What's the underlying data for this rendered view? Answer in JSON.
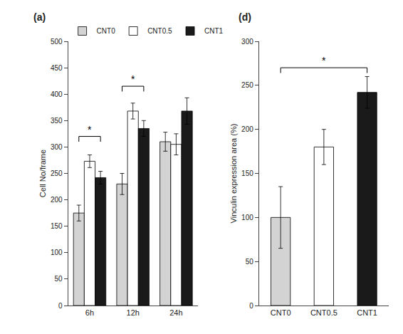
{
  "chart_data": [
    {
      "type": "bar",
      "title": "(a)",
      "categories": [
        "6h",
        "12h",
        "24h"
      ],
      "series": [
        {
          "name": "CNT0",
          "color": "#d3d3d3",
          "values": [
            175,
            230,
            310
          ],
          "errors": [
            15,
            20,
            18
          ]
        },
        {
          "name": "CNT0.5",
          "color": "white",
          "values": [
            273,
            368,
            305
          ],
          "errors": [
            12,
            15,
            20
          ]
        },
        {
          "name": "CNT1",
          "color": "#1a1a1a",
          "values": [
            242,
            335,
            368
          ],
          "errors": [
            12,
            15,
            25
          ]
        }
      ],
      "ylabel": "Cell No/frame",
      "ylim": [
        0,
        500
      ],
      "yticks": [
        0,
        50,
        100,
        150,
        200,
        250,
        300,
        350,
        400,
        450,
        500
      ],
      "legend": "upper left",
      "grid": false,
      "annotations": [
        {
          "text": "*",
          "x": "6h",
          "from": "CNT0",
          "to": "CNT1",
          "y": 320
        },
        {
          "text": "*",
          "x": "12h",
          "from": "CNT0",
          "to": "CNT1",
          "y": 415
        }
      ]
    },
    {
      "type": "bar",
      "title": "(d)",
      "categories": [
        "CNT0",
        "CNT0.5",
        "CNT1"
      ],
      "values": [
        100,
        180,
        242
      ],
      "errors": [
        35,
        20,
        18
      ],
      "colors": [
        "#d3d3d3",
        "white",
        "#1a1a1a"
      ],
      "ylabel": "Vinculin expression area (%)",
      "ylim": [
        0,
        300
      ],
      "yticks": [
        0,
        50,
        100,
        150,
        200,
        250,
        300
      ],
      "grid": false,
      "annotations": [
        {
          "text": "*",
          "from": "CNT0",
          "to": "CNT1",
          "y": 270
        }
      ]
    }
  ]
}
